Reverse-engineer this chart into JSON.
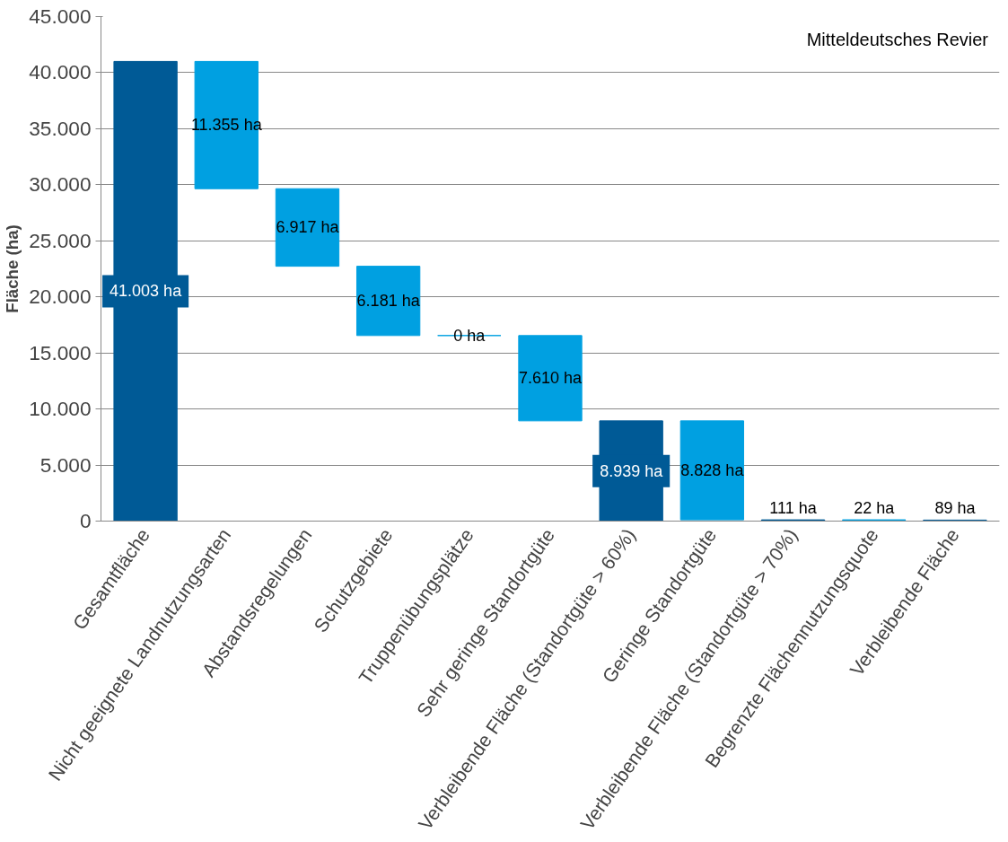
{
  "chart_data": {
    "type": "bar",
    "ylabel": "Fläche (ha)",
    "categories": [
      "Gesamtfläche",
      "Nicht geeignete Landnutzungsarten",
      "Abstandsregelungen",
      "Schutzgebiete",
      "Truppenübungsplätze",
      "Sehr geringe Standortgüte",
      "Verbleibende Fläche (Standortgüte > 60%)",
      "Geringe Standortgüte",
      "Verbleibende Fläche (Standortgüte > 70%)",
      "Begrenzte Flächennutzungsquote",
      "Verbleibende Fläche"
    ],
    "values": [
      41003,
      11355,
      6917,
      6181,
      0,
      7610,
      8939,
      8828,
      111,
      22,
      89
    ],
    "base": [
      0,
      29648,
      22731,
      16550,
      16550,
      8940,
      0,
      111,
      0,
      89,
      0
    ],
    "colors": [
      "#005a96",
      "#00a0e1",
      "#00a0e1",
      "#00a0e1",
      "#00a0e1",
      "#00a0e1",
      "#005a96",
      "#00a0e1",
      "#005a96",
      "#00a0e1",
      "#005a96"
    ],
    "value_labels": [
      "41.003 ha",
      "11.355 ha",
      "6.917 ha",
      "6.181 ha",
      "0 ha",
      "7.610 ha",
      "8.939 ha",
      "8.828 ha",
      "111 ha",
      "22 ha",
      "89 ha"
    ],
    "ylim": [
      0,
      45000
    ],
    "yticks": [
      0,
      {
        "value": 5000,
        "label": "5.000"
      },
      {
        "value": 10000,
        "label": "10.000"
      },
      {
        "value": 15000,
        "label": "15.000"
      },
      {
        "value": 20000,
        "label": "20.000"
      },
      {
        "value": 25000,
        "label": "25.000"
      },
      {
        "value": 30000,
        "label": "30.000"
      },
      {
        "value": 35000,
        "label": "35.000"
      },
      {
        "value": 40000,
        "label": "40.000"
      },
      {
        "value": 45000,
        "label": "45.000"
      }
    ],
    "grid": "y",
    "annotations": [
      "Mitteldeutsches Revier"
    ]
  }
}
